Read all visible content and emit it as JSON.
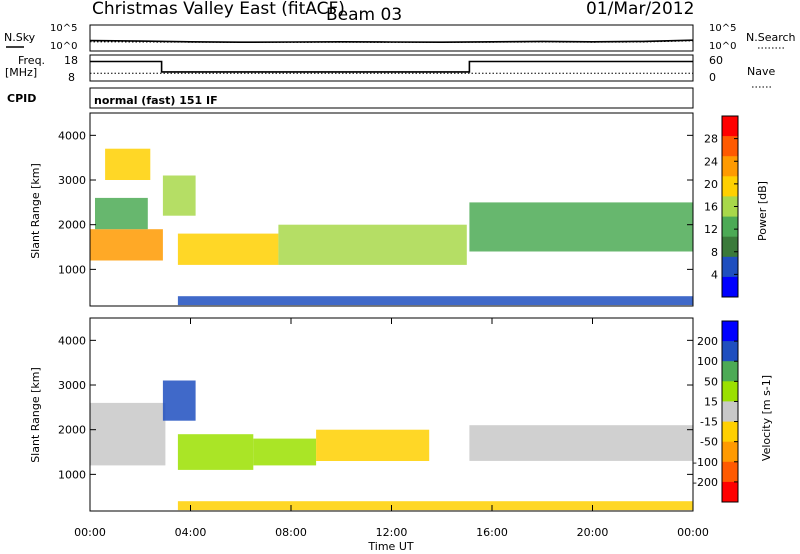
{
  "header": {
    "title": "Christmas Valley East (fitACF)",
    "beam": "Beam 03",
    "date": "01/Mar/2012",
    "cpid_label": "CPID",
    "cpid_value": "normal (fast) 151 IF"
  },
  "colors": {
    "power": [
      "#0000ff",
      "#1f4fbf",
      "#3a7a3a",
      "#4caa55",
      "#a8d84a",
      "#ffd000",
      "#ff9a00",
      "#ff5a00",
      "#ff0000"
    ],
    "velocity": [
      "#ff0000",
      "#ff5a00",
      "#ff9a00",
      "#ffd000",
      "#c8c8c8",
      "#9be000",
      "#4caa55",
      "#1f4fbf",
      "#0000ff"
    ],
    "ground_scatter": "#c8c8c8"
  },
  "chart_data": [
    {
      "type": "line",
      "name": "noise",
      "labels_left": [
        "N.Sky"
      ],
      "labels_right": [
        "N.Search"
      ],
      "ticks_left": [
        "10^5",
        "10^0"
      ],
      "ticks_right": [
        "10^5",
        "10^0"
      ],
      "note": "noise levels: sky noise (solid) and search noise (dotted), log scale",
      "x": [
        0,
        2,
        4,
        6,
        8,
        10,
        12,
        14,
        16,
        18,
        20,
        22,
        24
      ],
      "series": [
        {
          "name": "N.Sky",
          "values": [
            100,
            80,
            60,
            50,
            55,
            60,
            55,
            50,
            60,
            70,
            60,
            70,
            120
          ]
        },
        {
          "name": "N.Search",
          "values": [
            60,
            55,
            50,
            45,
            45,
            50,
            45,
            45,
            50,
            55,
            50,
            55,
            90
          ]
        }
      ],
      "ylim": [
        1,
        100000
      ],
      "log_scale": true
    },
    {
      "type": "line",
      "name": "frequency",
      "labels_left": [
        "Freq.",
        "[MHz]"
      ],
      "labels_right": [
        "Nave"
      ],
      "ticks_left": [
        "18",
        "8"
      ],
      "ticks_right": [
        "60",
        "0"
      ],
      "x": [
        0,
        2.85,
        2.85,
        15.1,
        15.1,
        24
      ],
      "series": [
        {
          "name": "Freq.",
          "values": [
            15.5,
            15.5,
            11.5,
            11.5,
            15.5,
            15.5
          ]
        },
        {
          "name": "Nave",
          "values": [
            18,
            18,
            18,
            18,
            18,
            18
          ]
        }
      ],
      "ylim": [
        8,
        18
      ]
    },
    {
      "type": "heatmap",
      "name": "power",
      "ylabel": "Slant Range [km]",
      "yticks": [
        "1000",
        "2000",
        "3000",
        "4000"
      ],
      "ylim": [
        180,
        4500
      ],
      "colorbar_label": "Power [dB]",
      "colorbar_ticks": [
        "4",
        "8",
        "12",
        "16",
        "20",
        "24",
        "28"
      ],
      "clim": [
        0,
        32
      ],
      "regions": [
        {
          "t": [
            0.0,
            2.9
          ],
          "r": [
            1200,
            1900
          ],
          "value": 22
        },
        {
          "t": [
            0.2,
            2.3
          ],
          "r": [
            1900,
            2600
          ],
          "value": 11
        },
        {
          "t": [
            0.6,
            2.4
          ],
          "r": [
            3000,
            3700
          ],
          "value": 18
        },
        {
          "t": [
            2.9,
            4.2
          ],
          "r": [
            2200,
            3100
          ],
          "value": 16
        },
        {
          "t": [
            3.5,
            7.5
          ],
          "r": [
            1100,
            1800
          ],
          "value": 20
        },
        {
          "t": [
            7.5,
            15.0
          ],
          "r": [
            1100,
            2000
          ],
          "value": 16
        },
        {
          "t": [
            15.1,
            24.0
          ],
          "r": [
            1400,
            2500
          ],
          "value": 14
        },
        {
          "t": [
            3.5,
            24.0
          ],
          "r": [
            200,
            400
          ],
          "value": 6
        }
      ]
    },
    {
      "type": "heatmap",
      "name": "velocity",
      "ylabel": "Slant Range [km]",
      "yticks": [
        "1000",
        "2000",
        "3000",
        "4000"
      ],
      "ylim": [
        180,
        4500
      ],
      "xlabel": "Time UT",
      "xticks": [
        "00:00",
        "04:00",
        "08:00",
        "12:00",
        "16:00",
        "20:00",
        "00:00"
      ],
      "xlim": [
        0,
        24
      ],
      "colorbar_label": "Velocity [m s-1]",
      "colorbar_ticks": [
        "200",
        "100",
        "50",
        "15",
        "-15",
        "-50",
        "-100",
        "-200"
      ],
      "clim": [
        -250,
        250
      ],
      "regions": [
        {
          "t": [
            0.0,
            3.0
          ],
          "r": [
            1200,
            2600
          ],
          "value": 0,
          "ground_scatter": true
        },
        {
          "t": [
            2.9,
            4.2
          ],
          "r": [
            2200,
            3100
          ],
          "value": 180
        },
        {
          "t": [
            3.5,
            6.5
          ],
          "r": [
            1100,
            1900
          ],
          "value": 60
        },
        {
          "t": [
            6.5,
            9.0
          ],
          "r": [
            1200,
            1800
          ],
          "value": 40
        },
        {
          "t": [
            9.0,
            13.5
          ],
          "r": [
            1300,
            2000
          ],
          "value": -80
        },
        {
          "t": [
            15.1,
            24.0
          ],
          "r": [
            1300,
            2100
          ],
          "value": 0,
          "ground_scatter": true
        },
        {
          "t": [
            3.5,
            24.0
          ],
          "r": [
            200,
            400
          ],
          "value": -40
        }
      ]
    }
  ]
}
